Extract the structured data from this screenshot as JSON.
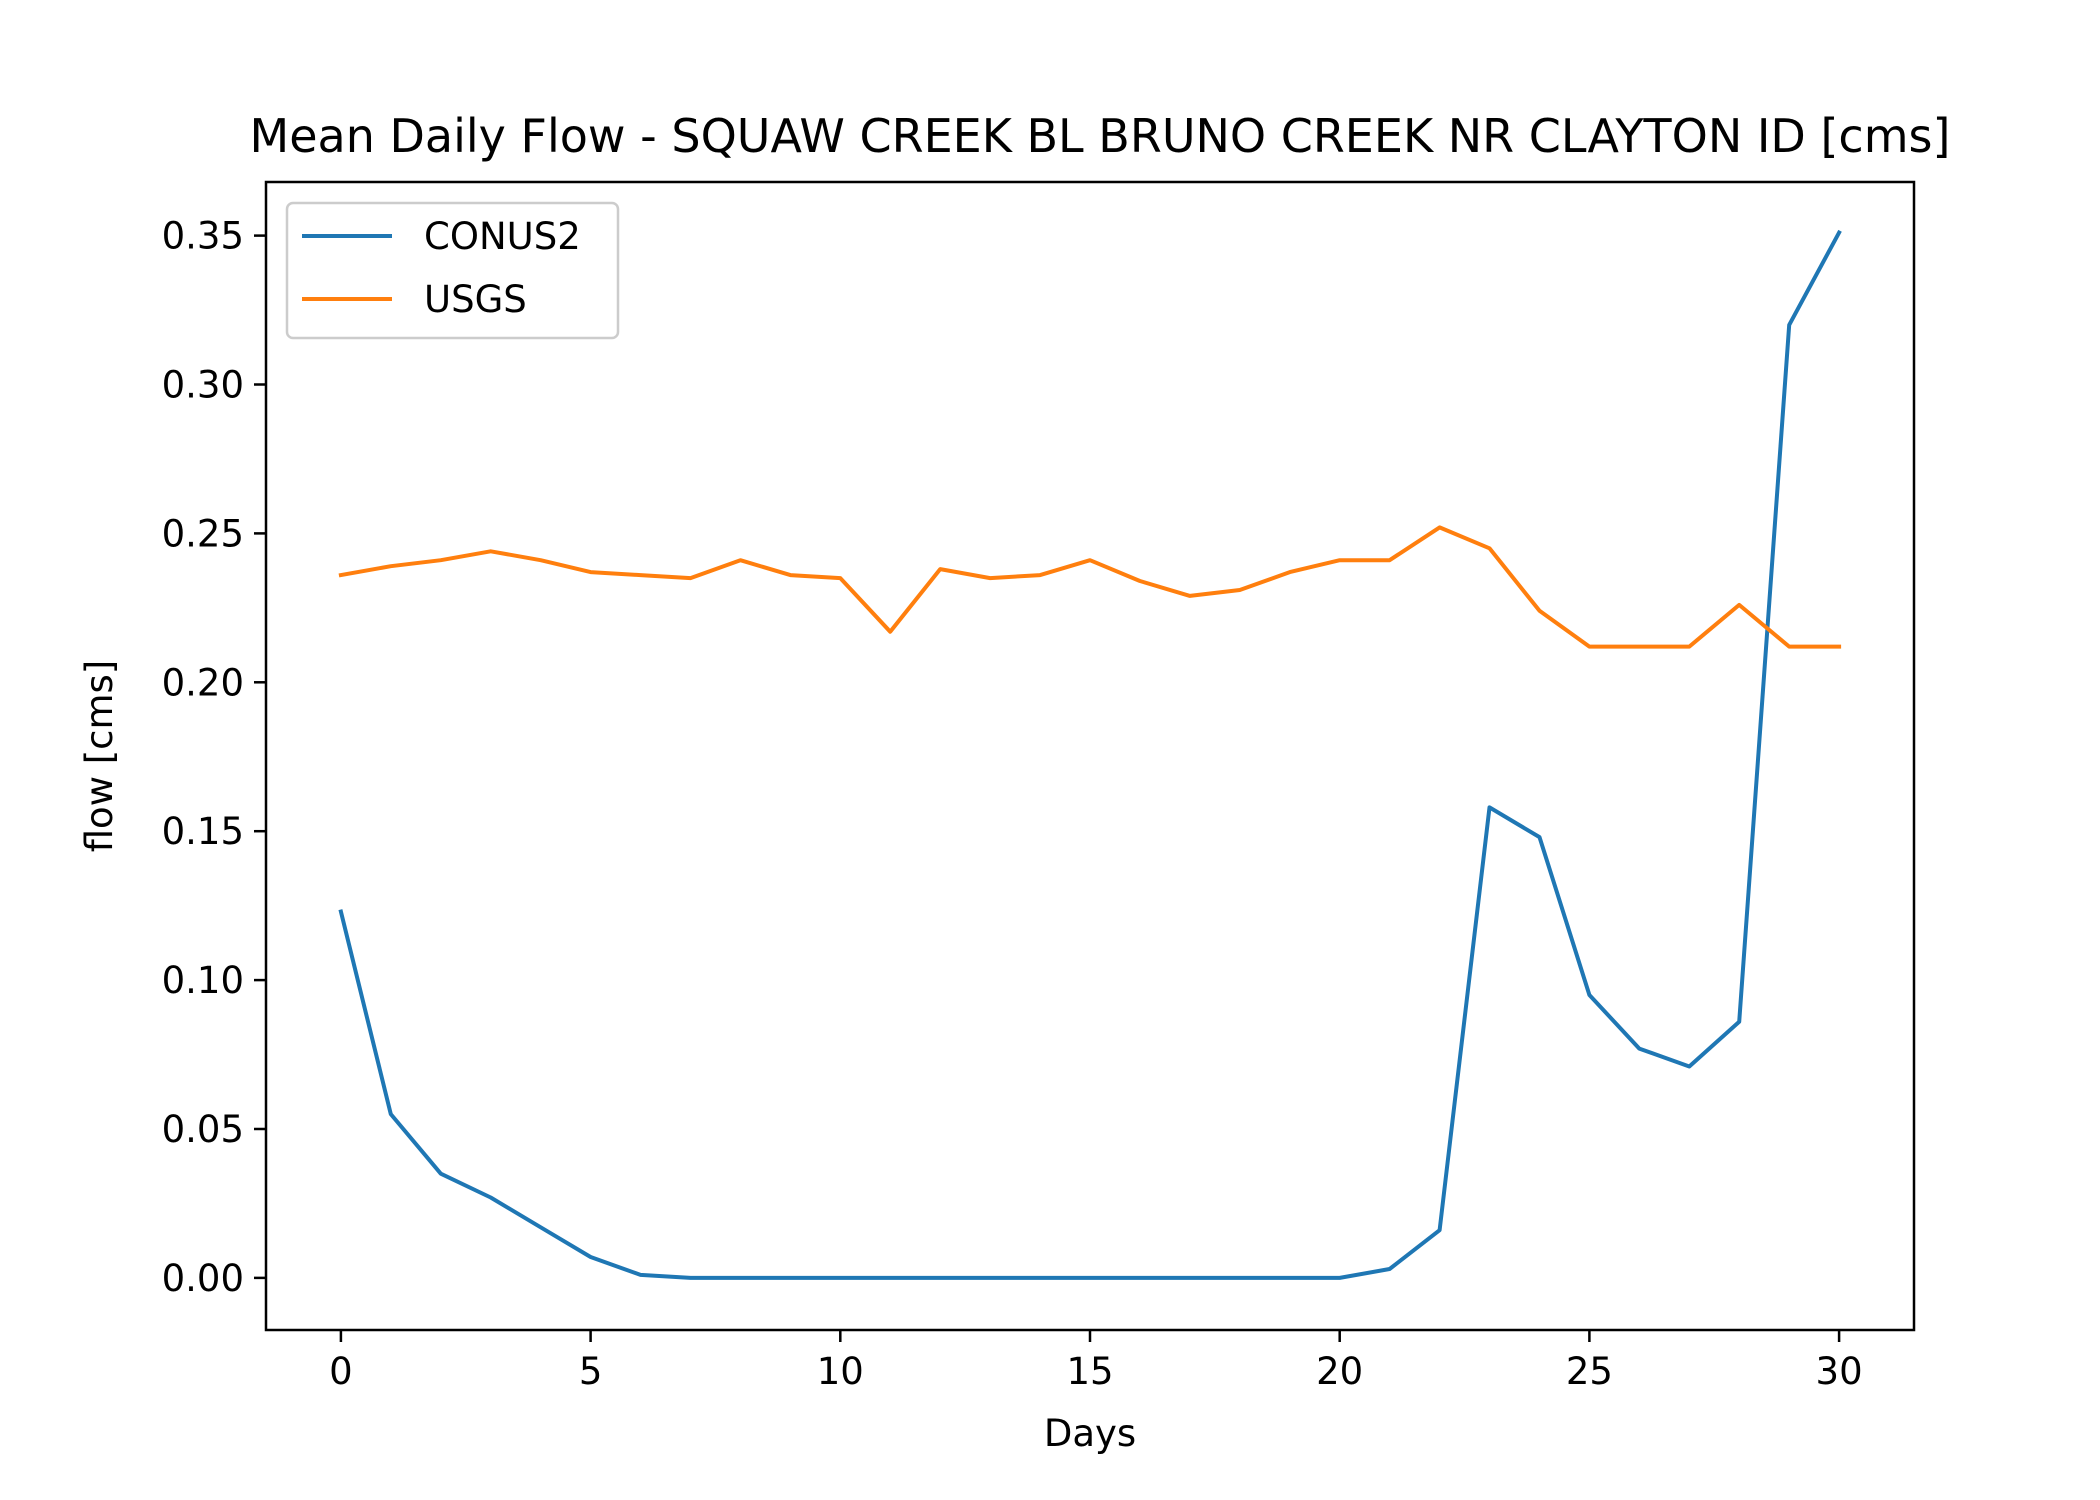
{
  "chart_data": {
    "type": "line",
    "title": "Mean Daily Flow - SQUAW CREEK BL BRUNO CREEK NR CLAYTON ID [cms]",
    "xlabel": "Days",
    "ylabel": "flow [cms]",
    "xlim": [
      -1.5,
      31.5
    ],
    "ylim": [
      -0.0175,
      0.368
    ],
    "x_ticks": [
      0,
      5,
      10,
      15,
      20,
      25,
      30
    ],
    "x_tick_labels": [
      "0",
      "5",
      "10",
      "15",
      "20",
      "25",
      "30"
    ],
    "y_ticks": [
      0.0,
      0.05,
      0.1,
      0.15,
      0.2,
      0.25,
      0.3,
      0.35
    ],
    "y_tick_labels": [
      "0.00",
      "0.05",
      "0.10",
      "0.15",
      "0.20",
      "0.25",
      "0.30",
      "0.35"
    ],
    "grid": false,
    "legend_position": "top-left",
    "x": [
      0,
      1,
      2,
      3,
      4,
      5,
      6,
      7,
      8,
      9,
      10,
      11,
      12,
      13,
      14,
      15,
      16,
      17,
      18,
      19,
      20,
      21,
      22,
      23,
      24,
      25,
      26,
      27,
      28,
      29,
      30
    ],
    "series": [
      {
        "name": "CONUS2",
        "color": "#1f77b4",
        "values": [
          0.123,
          0.055,
          0.035,
          0.027,
          0.017,
          0.007,
          0.001,
          0.0,
          0.0,
          0.0,
          0.0,
          0.0,
          0.0,
          0.0,
          0.0,
          0.0,
          0.0,
          0.0,
          0.0,
          0.0,
          0.0,
          0.003,
          0.016,
          0.158,
          0.148,
          0.095,
          0.077,
          0.071,
          0.086,
          0.32,
          0.351
        ]
      },
      {
        "name": "USGS",
        "color": "#ff7f0e",
        "values": [
          0.236,
          0.239,
          0.241,
          0.244,
          0.241,
          0.237,
          0.236,
          0.235,
          0.241,
          0.236,
          0.235,
          0.217,
          0.238,
          0.235,
          0.236,
          0.241,
          0.234,
          0.229,
          0.231,
          0.237,
          0.241,
          0.241,
          0.252,
          0.245,
          0.224,
          0.212,
          0.212,
          0.212,
          0.226,
          0.212,
          0.212
        ]
      }
    ]
  }
}
